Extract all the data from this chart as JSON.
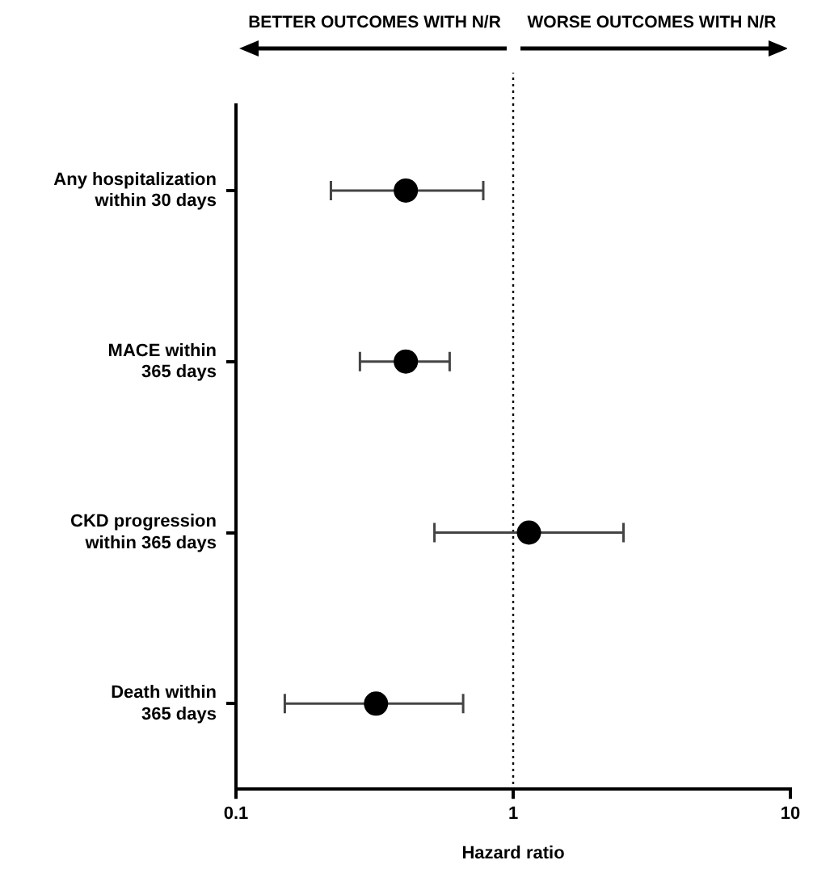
{
  "chart_data": {
    "type": "scatter",
    "orientation": "horizontal",
    "xlabel": "Hazard ratio",
    "annotations": [
      "BETTER OUTCOMES WITH N/R",
      "WORSE OUTCOMES WITH N/R"
    ],
    "categories": [
      "Any hospitalization\nwithin 30 days",
      "MACE within\n365 days",
      "CKD progression\nwithin 365 days",
      "Death within\n365 days"
    ],
    "values": [
      0.41,
      0.41,
      1.14,
      0.32
    ],
    "errors": [
      [
        0.22,
        0.78
      ],
      [
        0.28,
        0.59
      ],
      [
        0.52,
        2.5
      ],
      [
        0.15,
        0.66
      ]
    ],
    "color": "#000000",
    "marker": "circle",
    "log": "x",
    "xlim": [
      0.1,
      10
    ],
    "xticks": [
      0.1,
      1,
      10
    ],
    "ref_lines": [
      {
        "axis": "x",
        "value": 1,
        "line_style": "dotted",
        "color": "#000000"
      }
    ],
    "legend": false
  }
}
